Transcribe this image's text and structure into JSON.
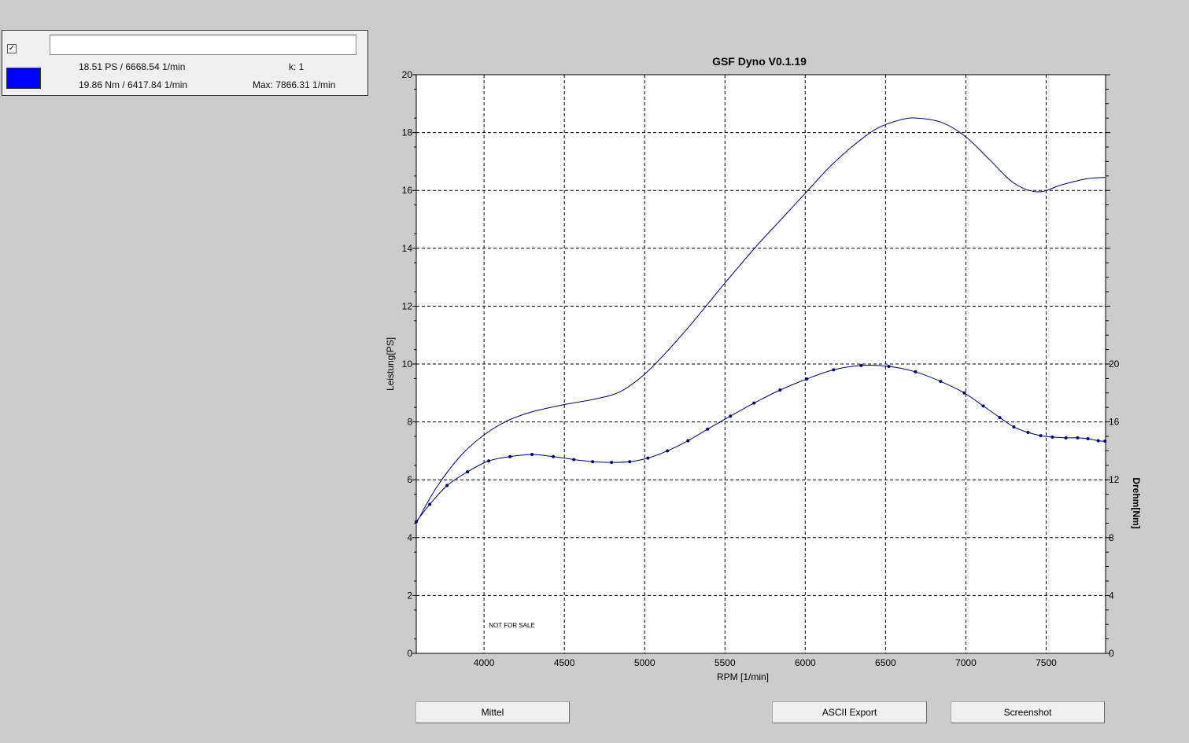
{
  "legend": {
    "checked": true,
    "name_value": "",
    "swatch_color": "#0000ff",
    "power_peak": "18.51 PS / 6668.54 1/min",
    "torque_peak": "19.86 Nm / 6417.84 1/min",
    "k_value": "k: 1",
    "max_rpm": "Max: 7866.31 1/min"
  },
  "buttons": {
    "mittel": "Mittel",
    "ascii_export": "ASCII Export",
    "screenshot": "Screenshot"
  },
  "chart_data": {
    "type": "line",
    "title": "GSF Dyno V0.1.19",
    "xlabel": "RPM [1/min]",
    "ylabel": "Leistung[PS]",
    "y2label": "Drehm[Nm]",
    "watermark": "NOT FOR SALE",
    "xlim": [
      3578,
      7870
    ],
    "ylim": [
      0,
      20
    ],
    "y2lim": [
      0,
      40
    ],
    "xticks": [
      4000,
      4500,
      5000,
      5500,
      6000,
      6500,
      7000,
      7500
    ],
    "yticks": [
      0,
      2,
      4,
      6,
      8,
      10,
      12,
      14,
      16,
      18,
      20
    ],
    "y2ticks": [
      0,
      4,
      8,
      12,
      16,
      20
    ],
    "grid": true,
    "line_color": "#000066",
    "series": [
      {
        "axis": "left",
        "markers": false,
        "x": [
          3578,
          3700,
          3850,
          4000,
          4150,
          4300,
          4500,
          4700,
          4850,
          5000,
          5150,
          5300,
          5500,
          5700,
          5850,
          6000,
          6150,
          6300,
          6450,
          6600,
          6700,
          6850,
          7000,
          7150,
          7300,
          7450,
          7600,
          7750,
          7866
        ],
        "y": [
          4.5,
          5.7,
          6.8,
          7.55,
          8.05,
          8.35,
          8.6,
          8.8,
          9.05,
          9.65,
          10.5,
          11.45,
          12.8,
          14.1,
          15.0,
          15.9,
          16.8,
          17.55,
          18.15,
          18.45,
          18.5,
          18.35,
          17.85,
          17.05,
          16.25,
          15.95,
          16.2,
          16.4,
          16.45
        ]
      },
      {
        "axis": "right",
        "markers": true,
        "x": [
          3578,
          3662,
          3770,
          3897,
          4029,
          4162,
          4299,
          4431,
          4559,
          4676,
          4794,
          4907,
          5020,
          5142,
          5270,
          5392,
          5534,
          5681,
          5843,
          6010,
          6176,
          6348,
          6520,
          6686,
          6843,
          6990,
          7108,
          7211,
          7299,
          7387,
          7466,
          7539,
          7623,
          7696,
          7760,
          7824,
          7866
        ],
        "y": [
          9.1,
          10.3,
          11.6,
          12.55,
          13.3,
          13.6,
          13.75,
          13.6,
          13.4,
          13.25,
          13.2,
          13.25,
          13.5,
          14.0,
          14.7,
          15.5,
          16.4,
          17.3,
          18.2,
          18.97,
          19.6,
          19.9,
          19.84,
          19.46,
          18.8,
          18.0,
          17.1,
          16.3,
          15.65,
          15.27,
          15.05,
          14.95,
          14.9,
          14.9,
          14.84,
          14.7,
          14.67
        ]
      }
    ]
  }
}
